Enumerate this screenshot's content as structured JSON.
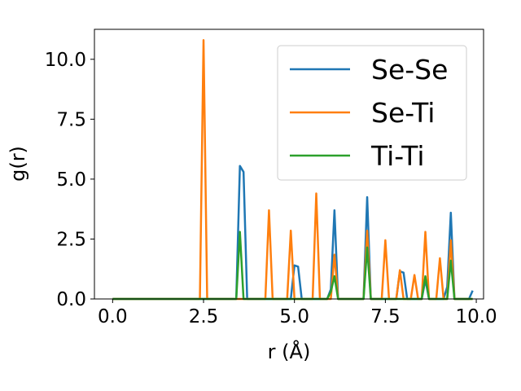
{
  "chart_data": {
    "type": "line",
    "title": "",
    "xlabel": "r (Å)",
    "ylabel": "g(r)",
    "xlim": [
      -0.5,
      10.2
    ],
    "ylim": [
      0,
      11.25
    ],
    "xticks": [
      0.0,
      2.5,
      5.0,
      7.5,
      10.0
    ],
    "xtick_labels": [
      "0.0",
      "2.5",
      "5.0",
      "7.5",
      "10.0"
    ],
    "yticks": [
      0.0,
      2.5,
      5.0,
      7.5,
      10.0
    ],
    "ytick_labels": [
      "0.0",
      "2.5",
      "5.0",
      "7.5",
      "10.0"
    ],
    "grid": false,
    "legend_position": "top-right",
    "series": [
      {
        "name": "Se-Se",
        "color": "#1f77b4",
        "x": [
          0.0,
          3.4,
          3.5,
          3.6,
          3.7,
          4.9,
          5.0,
          5.1,
          5.2,
          5.9,
          6.0,
          6.1,
          6.2,
          6.8,
          6.9,
          7.0,
          7.1,
          7.7,
          7.8,
          7.9,
          8.0,
          8.1,
          8.5,
          8.6,
          8.7,
          9.1,
          9.2,
          9.3,
          9.4,
          9.8,
          9.9
        ],
        "y": [
          0.0,
          0.0,
          5.55,
          5.3,
          0.0,
          0.0,
          1.4,
          1.35,
          0.0,
          0.0,
          0.4,
          3.7,
          0.0,
          0.0,
          0.0,
          4.25,
          0.0,
          0.0,
          0.0,
          1.15,
          1.1,
          0.0,
          0.0,
          0.8,
          0.0,
          0.0,
          0.5,
          3.6,
          0.0,
          0.0,
          0.35
        ]
      },
      {
        "name": "Se-Ti",
        "color": "#ff7f0e",
        "x": [
          0.0,
          2.4,
          2.5,
          2.6,
          4.2,
          4.3,
          4.4,
          4.8,
          4.9,
          5.0,
          5.5,
          5.6,
          5.7,
          6.0,
          6.1,
          6.2,
          6.9,
          7.0,
          7.1,
          7.4,
          7.5,
          7.6,
          7.8,
          7.9,
          8.0,
          8.2,
          8.3,
          8.4,
          8.5,
          8.6,
          8.7,
          8.9,
          9.0,
          9.1,
          9.2,
          9.3,
          9.4,
          9.9
        ],
        "y": [
          0.0,
          0.0,
          10.8,
          0.0,
          0.0,
          3.7,
          0.0,
          0.0,
          2.85,
          0.0,
          0.0,
          4.4,
          0.0,
          0.0,
          1.85,
          0.0,
          0.0,
          2.85,
          0.0,
          0.0,
          2.45,
          0.0,
          0.0,
          1.2,
          0.0,
          0.0,
          1.0,
          0.0,
          0.0,
          2.8,
          0.0,
          0.0,
          1.7,
          0.0,
          0.0,
          2.45,
          0.0,
          0.0
        ]
      },
      {
        "name": "Ti-Ti",
        "color": "#2ca02c",
        "x": [
          0.0,
          3.4,
          3.5,
          3.6,
          5.9,
          6.0,
          6.1,
          6.2,
          6.9,
          7.0,
          7.1,
          8.5,
          8.6,
          8.7,
          9.2,
          9.3,
          9.4,
          9.9
        ],
        "y": [
          0.0,
          0.0,
          2.8,
          0.0,
          0.0,
          0.3,
          0.95,
          0.0,
          0.0,
          2.15,
          0.0,
          0.0,
          0.95,
          0.0,
          0.0,
          1.6,
          0.0,
          0.0
        ]
      }
    ]
  }
}
